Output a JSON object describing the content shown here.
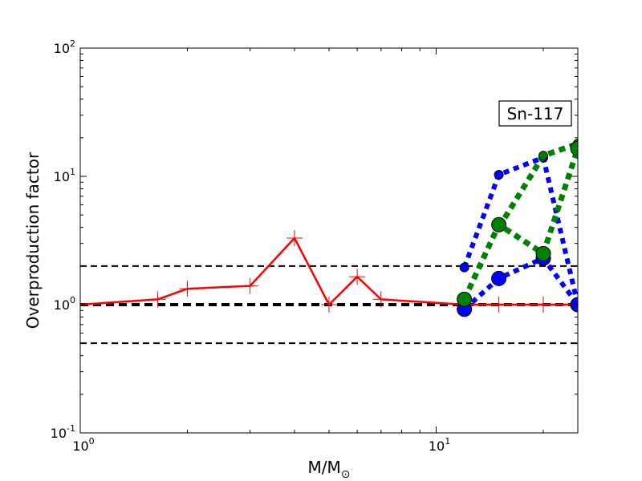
{
  "chart_data": {
    "type": "line",
    "title": "",
    "xlabel": "M/M",
    "xlabel_subscript": "⊙",
    "ylabel": "Overproduction factor",
    "xscale": "log",
    "yscale": "log",
    "xlim": [
      1,
      25
    ],
    "ylim": [
      0.1,
      100
    ],
    "x_ticks": [
      {
        "base": "10",
        "exp": "0"
      },
      {
        "base": "10",
        "exp": "1"
      }
    ],
    "y_ticks": [
      {
        "base": "10",
        "exp": "-1"
      },
      {
        "base": "10",
        "exp": "0"
      },
      {
        "base": "10",
        "exp": "1"
      },
      {
        "base": "10",
        "exp": "2"
      }
    ],
    "annotation": "Sn-117",
    "reference_lines": [
      {
        "y": 2.0,
        "style": "dashed",
        "width": "thin",
        "color": "#000000"
      },
      {
        "y": 1.0,
        "style": "dashed",
        "width": "thick",
        "color": "#000000"
      },
      {
        "y": 0.5,
        "style": "dashed",
        "width": "thin",
        "color": "#000000"
      }
    ],
    "series": [
      {
        "color": "#ff0000",
        "style": "solid",
        "marker": "plus",
        "x": [
          1,
          1.65,
          2,
          3,
          4,
          5,
          6,
          7,
          12,
          15,
          20,
          25
        ],
        "y": [
          1.0,
          1.1,
          1.33,
          1.4,
          3.3,
          1.0,
          1.65,
          1.1,
          1.0,
          1.0,
          1.0,
          1.0
        ]
      },
      {
        "color": "#0000ff",
        "style": "dotted",
        "marker": "circle",
        "marker_size": "small",
        "x": [
          12,
          15,
          20,
          25
        ],
        "y": [
          1.95,
          10.3,
          14.0,
          1.0
        ]
      },
      {
        "color": "#0000ff",
        "style": "dotted",
        "marker": "circle",
        "marker_size": "large",
        "x": [
          12,
          15,
          20,
          25
        ],
        "y": [
          0.92,
          1.6,
          2.3,
          1.0
        ]
      },
      {
        "color": "#008000",
        "style": "dotted",
        "marker": "circle",
        "marker_size": "small",
        "x": [
          15,
          20,
          25
        ],
        "y": [
          4.0,
          14.5,
          18.0
        ]
      },
      {
        "color": "#008000",
        "style": "dotted",
        "marker": "circle",
        "marker_size": "large",
        "x": [
          12,
          15,
          20,
          25
        ],
        "y": [
          1.1,
          4.2,
          2.5,
          16.5
        ]
      }
    ]
  }
}
